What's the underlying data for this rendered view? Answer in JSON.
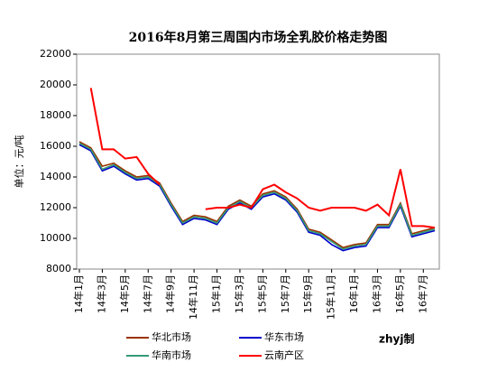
{
  "chart_data": {
    "type": "line",
    "title": "2016年8月第三周国内市场全乳胶价格走势图",
    "y_label": "单位：元/吨",
    "credit": "zhyj制",
    "categories": [
      "14年1月",
      null,
      "14年3月",
      null,
      "14年5月",
      null,
      "14年7月",
      null,
      "14年9月",
      null,
      "14年11月",
      null,
      "15年1月",
      null,
      "15年3月",
      null,
      "15年5月",
      null,
      "15年7月",
      null,
      "15年9月",
      null,
      "15年11月",
      null,
      "16年1月",
      null,
      "16年3月",
      null,
      "16年5月",
      null,
      "16年7月",
      null
    ],
    "ylim": [
      8000,
      22000
    ],
    "yticks": [
      8000,
      10000,
      12000,
      14000,
      16000,
      18000,
      20000,
      22000
    ],
    "grid": false,
    "series": [
      {
        "name": "华北市场",
        "color": "#993300",
        "values": [
          16300,
          15900,
          14700,
          14900,
          14400,
          14000,
          14100,
          13600,
          12300,
          11100,
          11500,
          11400,
          11100,
          12100,
          12500,
          12100,
          12900,
          13100,
          12700,
          11900,
          10600,
          10400,
          9900,
          9400,
          9600,
          9700,
          10900,
          10900,
          12300,
          10300,
          10500,
          10700
        ]
      },
      {
        "name": "华东市场",
        "color": "#0000cc",
        "values": [
          16100,
          15700,
          14400,
          14700,
          14200,
          13800,
          13900,
          13400,
          12100,
          10900,
          11300,
          11200,
          10900,
          11900,
          12300,
          11900,
          12700,
          12900,
          12500,
          11700,
          10400,
          10200,
          9600,
          9200,
          9400,
          9500,
          10700,
          10700,
          12100,
          10100,
          10300,
          10500
        ]
      },
      {
        "name": "华南市场",
        "color": "#339977",
        "values": [
          16200,
          15800,
          14500,
          14800,
          14300,
          13900,
          14000,
          13500,
          12200,
          11000,
          11400,
          11300,
          11000,
          12000,
          12400,
          12000,
          12800,
          13000,
          12600,
          11800,
          10500,
          10300,
          9800,
          9300,
          9500,
          9600,
          10800,
          10800,
          12200,
          10200,
          10400,
          10600
        ]
      },
      {
        "name": "云南产区",
        "color": "#ff0000",
        "values": [
          null,
          19800,
          15800,
          15800,
          15200,
          15300,
          14200,
          13500,
          null,
          null,
          null,
          11900,
          12000,
          12000,
          12200,
          12000,
          13200,
          13500,
          13000,
          12600,
          12000,
          11800,
          12000,
          12000,
          12000,
          11800,
          12200,
          11500,
          14500,
          10800,
          10800,
          10700
        ]
      }
    ]
  }
}
